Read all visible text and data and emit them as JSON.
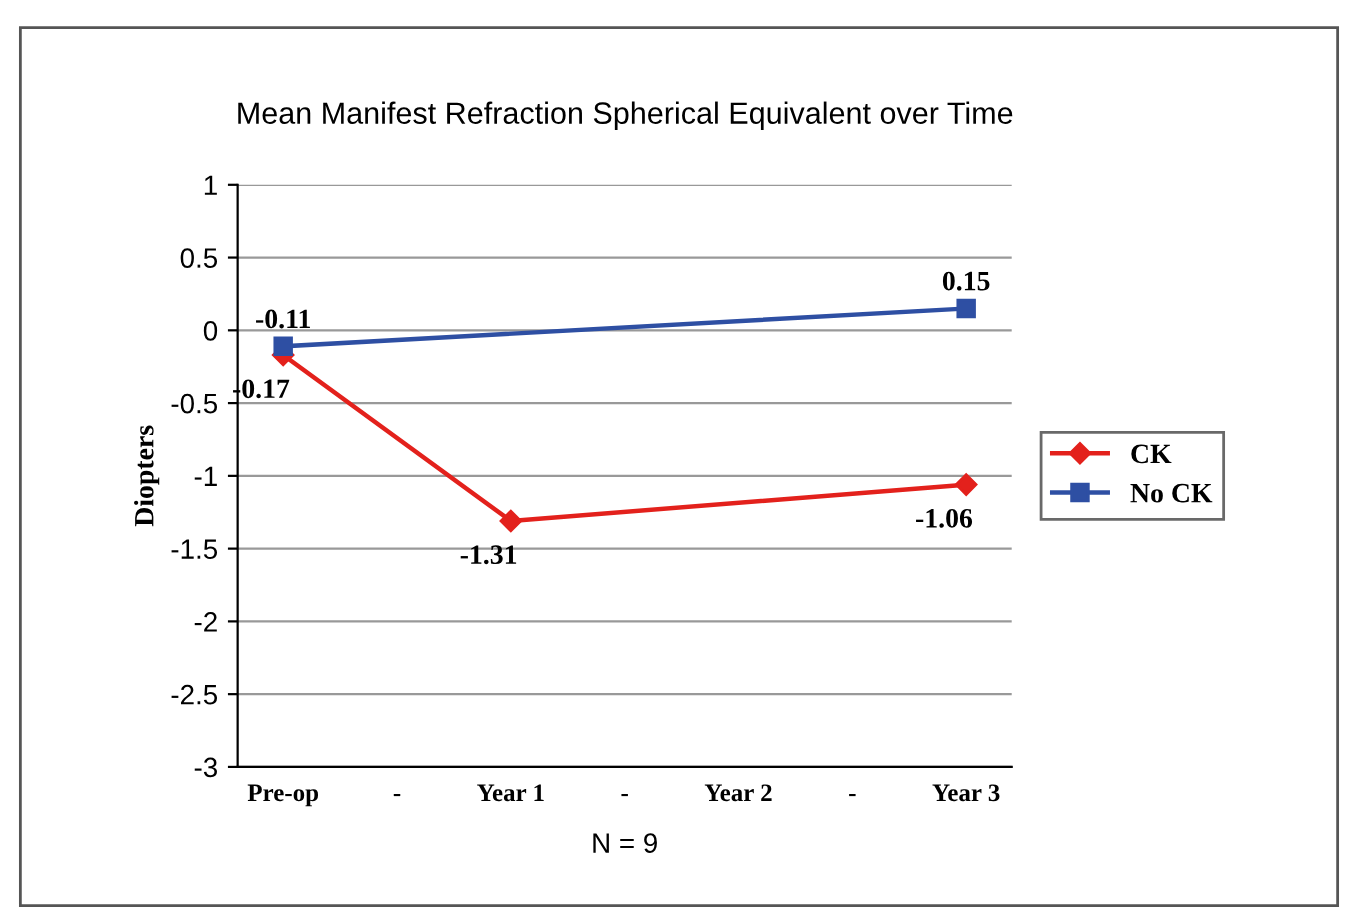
{
  "chart_data": {
    "type": "line",
    "title": "Mean Manifest Refraction Spherical Equivalent over Time",
    "ylabel": "Diopters",
    "categories": [
      "Pre-op",
      "-",
      "Year 1",
      "-",
      "Year 2",
      "-",
      "Year 3"
    ],
    "series": [
      {
        "name": "CK",
        "color": "#e3211c",
        "marker": "diamond",
        "values": [
          -0.17,
          null,
          -1.31,
          null,
          null,
          null,
          -1.06
        ]
      },
      {
        "name": "No CK",
        "color": "#2e4fa3",
        "marker": "square",
        "values": [
          -0.11,
          null,
          null,
          null,
          null,
          null,
          0.15
        ]
      }
    ],
    "ylim": [
      -3,
      1
    ],
    "yticks": [
      -3,
      -2.5,
      -2,
      -1.5,
      -1,
      -0.5,
      0,
      0.5,
      1
    ],
    "grid": "y",
    "legend": "right",
    "data_labels": true,
    "line_style": "solid",
    "annotations": [
      "N = 9"
    ]
  }
}
